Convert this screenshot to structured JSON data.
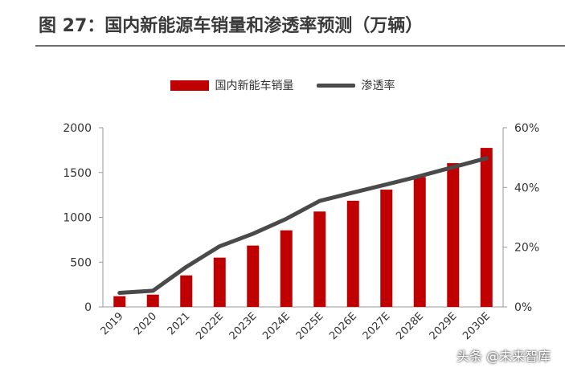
{
  "figure": {
    "title": "图 27：国内新能源车销量和渗透率预测（万辆）"
  },
  "chart_data": {
    "type": "bar",
    "categories": [
      "2019",
      "2020",
      "2021",
      "2022E",
      "2023E",
      "2024E",
      "2025E",
      "2026E",
      "2027E",
      "2028E",
      "2029E",
      "2030E"
    ],
    "series": [
      {
        "name": "国内新能车销量",
        "type": "bar",
        "axis": "left",
        "color": "#c00000",
        "values": [
          120,
          137,
          352,
          550,
          685,
          855,
          1065,
          1185,
          1310,
          1450,
          1605,
          1775
        ]
      },
      {
        "name": "渗透率",
        "type": "line",
        "axis": "right",
        "color": "#4a4a4a",
        "values": [
          4.7,
          5.4,
          13.4,
          20.3,
          24.5,
          29.5,
          35.5,
          38.3,
          41.0,
          43.8,
          46.8,
          49.8
        ]
      }
    ],
    "y_left": {
      "min": 0,
      "max": 2000,
      "ticks": [
        "0",
        "500",
        "1000",
        "1500",
        "2000"
      ],
      "tick_values": [
        0,
        500,
        1000,
        1500,
        2000
      ]
    },
    "y_right": {
      "min": 0,
      "max": 60,
      "ticks": [
        "0%",
        "20%",
        "40%",
        "60%"
      ],
      "tick_values": [
        0,
        20,
        40,
        60
      ]
    },
    "legend_position": "top-center",
    "grid": false
  },
  "watermark": "头条 @未来智库"
}
